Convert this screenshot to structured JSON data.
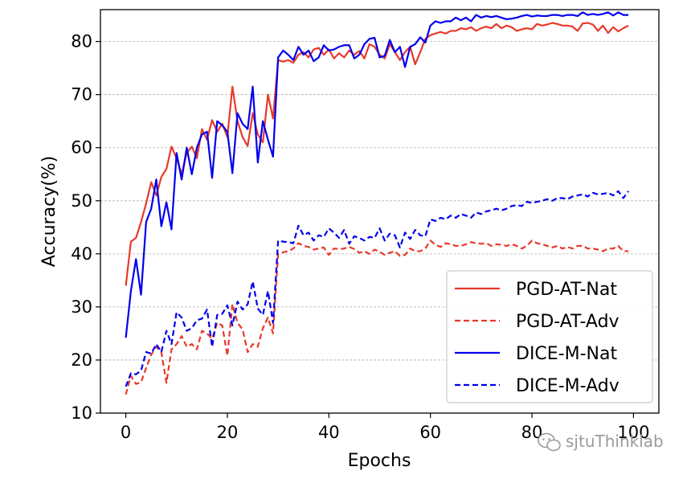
{
  "chart_data": {
    "type": "line",
    "title": "",
    "xlabel": "Epochs",
    "ylabel": "Accuracy(%)",
    "xlim": [
      -5,
      105
    ],
    "ylim": [
      10,
      86
    ],
    "xticks": [
      0,
      20,
      40,
      60,
      80,
      100
    ],
    "yticks": [
      10,
      20,
      30,
      40,
      50,
      60,
      70,
      80
    ],
    "grid": "horizontal-dashed",
    "legend_position": "lower-right",
    "watermark": "sjtuThinklab",
    "x": [
      0,
      1,
      2,
      3,
      4,
      5,
      6,
      7,
      8,
      9,
      10,
      11,
      12,
      13,
      14,
      15,
      16,
      17,
      18,
      19,
      20,
      21,
      22,
      23,
      24,
      25,
      26,
      27,
      28,
      29,
      30,
      31,
      32,
      33,
      34,
      35,
      36,
      37,
      38,
      39,
      40,
      41,
      42,
      43,
      44,
      45,
      46,
      47,
      48,
      49,
      50,
      51,
      52,
      53,
      54,
      55,
      56,
      57,
      58,
      59,
      60,
      61,
      62,
      63,
      64,
      65,
      66,
      67,
      68,
      69,
      70,
      71,
      72,
      73,
      74,
      75,
      76,
      77,
      78,
      79,
      80,
      81,
      82,
      83,
      84,
      85,
      86,
      87,
      88,
      89,
      90,
      91,
      92,
      93,
      94,
      95,
      96,
      97,
      98,
      99
    ],
    "series": [
      {
        "name": "PGD-AT-Nat",
        "color": "#e8392b",
        "style": "solid",
        "values": [
          34.0,
          42.3,
          43.0,
          46.0,
          49.5,
          53.5,
          51.0,
          54.5,
          56.0,
          60.2,
          58.0,
          55.0,
          59.0,
          60.2,
          58.0,
          63.5,
          61.5,
          65.2,
          63.0,
          64.5,
          62.0,
          71.5,
          65.0,
          62.0,
          60.3,
          66.5,
          62.5,
          61.0,
          70.0,
          65.5,
          76.5,
          76.2,
          76.5,
          76.0,
          77.5,
          78.0,
          77.0,
          78.5,
          78.8,
          77.5,
          78.5,
          76.8,
          77.8,
          77.0,
          78.3,
          77.5,
          78.2,
          76.8,
          79.5,
          79.0,
          77.5,
          76.8,
          79.5,
          78.0,
          76.5,
          78.0,
          79.0,
          75.7,
          78.0,
          80.5,
          81.2,
          81.5,
          81.8,
          81.5,
          82.0,
          82.0,
          82.5,
          82.3,
          82.7,
          82.0,
          82.5,
          82.8,
          82.5,
          83.3,
          82.5,
          83.0,
          82.7,
          82.0,
          82.3,
          82.5,
          82.3,
          83.3,
          83.0,
          83.2,
          83.5,
          83.3,
          83.0,
          83.0,
          82.8,
          82.0,
          83.4,
          83.5,
          83.2,
          82.0,
          83.0,
          81.6,
          82.7,
          81.9,
          82.5,
          83.0
        ]
      },
      {
        "name": "PGD-AT-Adv",
        "color": "#e8392b",
        "style": "dashed",
        "values": [
          13.5,
          17.0,
          15.5,
          15.8,
          18.5,
          21.0,
          22.5,
          21.5,
          15.7,
          22.0,
          23.0,
          24.5,
          22.5,
          23.0,
          22.0,
          25.5,
          25.0,
          24.0,
          27.0,
          26.5,
          20.8,
          30.5,
          27.0,
          25.8,
          21.5,
          23.0,
          22.5,
          26.0,
          28.0,
          25.0,
          40.0,
          40.3,
          40.5,
          41.0,
          42.0,
          41.5,
          41.3,
          40.8,
          41.0,
          41.2,
          39.8,
          41.0,
          40.9,
          41.0,
          41.3,
          40.9,
          40.2,
          40.5,
          40.0,
          40.8,
          40.4,
          39.8,
          40.2,
          40.5,
          39.6,
          39.8,
          41.0,
          40.5,
          40.5,
          41.0,
          42.5,
          41.7,
          41.3,
          42.0,
          41.8,
          41.5,
          41.5,
          41.8,
          42.2,
          42.0,
          41.9,
          42.0,
          41.5,
          41.8,
          41.7,
          41.5,
          41.8,
          41.5,
          41.0,
          41.5,
          42.5,
          42.0,
          41.8,
          41.5,
          41.2,
          41.5,
          41.0,
          41.3,
          41.0,
          41.5,
          41.5,
          41.0,
          41.0,
          40.8,
          40.5,
          41.0,
          41.0,
          41.5,
          40.5,
          40.5
        ]
      },
      {
        "name": "DICE-M-Nat",
        "color": "#0000ee",
        "style": "solid",
        "values": [
          24.2,
          33.0,
          39.0,
          32.3,
          46.0,
          48.5,
          54.0,
          45.2,
          49.7,
          44.6,
          59.0,
          54.0,
          60.0,
          55.0,
          60.0,
          62.5,
          63.0,
          54.3,
          65.0,
          64.2,
          63.0,
          55.2,
          66.5,
          64.5,
          63.5,
          71.5,
          57.2,
          65.0,
          61.5,
          58.3,
          77.0,
          78.3,
          77.5,
          76.5,
          79.0,
          77.5,
          78.3,
          76.3,
          77.0,
          79.3,
          78.3,
          78.5,
          79.0,
          79.3,
          79.3,
          76.8,
          77.5,
          79.5,
          80.5,
          80.7,
          77.0,
          77.3,
          80.3,
          78.0,
          79.0,
          75.2,
          79.0,
          79.5,
          80.8,
          79.8,
          83.0,
          83.8,
          83.5,
          83.8,
          83.8,
          84.5,
          84.0,
          84.5,
          83.8,
          85.0,
          84.5,
          84.8,
          84.6,
          84.8,
          84.5,
          84.2,
          84.3,
          84.5,
          84.8,
          85.0,
          84.7,
          84.9,
          84.8,
          84.8,
          85.0,
          85.0,
          84.8,
          85.0,
          85.0,
          84.8,
          85.5,
          85.0,
          85.2,
          85.0,
          85.2,
          85.5,
          84.9,
          85.5,
          85.0,
          85.0
        ]
      },
      {
        "name": "DICE-M-Adv",
        "color": "#0000ee",
        "style": "dashed",
        "values": [
          15.0,
          17.5,
          17.3,
          18.0,
          21.5,
          21.2,
          23.0,
          21.5,
          25.5,
          23.0,
          29.0,
          28.0,
          25.5,
          26.0,
          27.5,
          27.8,
          29.5,
          22.5,
          28.5,
          28.7,
          30.3,
          26.5,
          31.0,
          29.5,
          30.5,
          34.8,
          29.7,
          28.5,
          33.0,
          27.0,
          42.5,
          42.3,
          42.2,
          42.0,
          45.3,
          43.5,
          44.0,
          42.5,
          43.5,
          43.2,
          44.8,
          44.0,
          43.0,
          44.5,
          41.9,
          43.3,
          43.0,
          42.5,
          43.2,
          43.0,
          44.8,
          42.5,
          43.8,
          43.5,
          41.2,
          44.0,
          42.8,
          44.5,
          43.5,
          43.3,
          46.5,
          46.2,
          46.8,
          46.5,
          47.2,
          46.8,
          47.5,
          47.2,
          46.8,
          47.8,
          47.5,
          48.0,
          48.2,
          48.5,
          48.2,
          48.5,
          49.0,
          49.2,
          49.0,
          49.8,
          49.6,
          49.8,
          50.0,
          50.3,
          50.0,
          50.5,
          50.5,
          50.3,
          50.8,
          51.0,
          51.2,
          50.8,
          51.5,
          51.2,
          51.3,
          51.5,
          51.0,
          51.8,
          50.5,
          51.8
        ]
      }
    ]
  }
}
